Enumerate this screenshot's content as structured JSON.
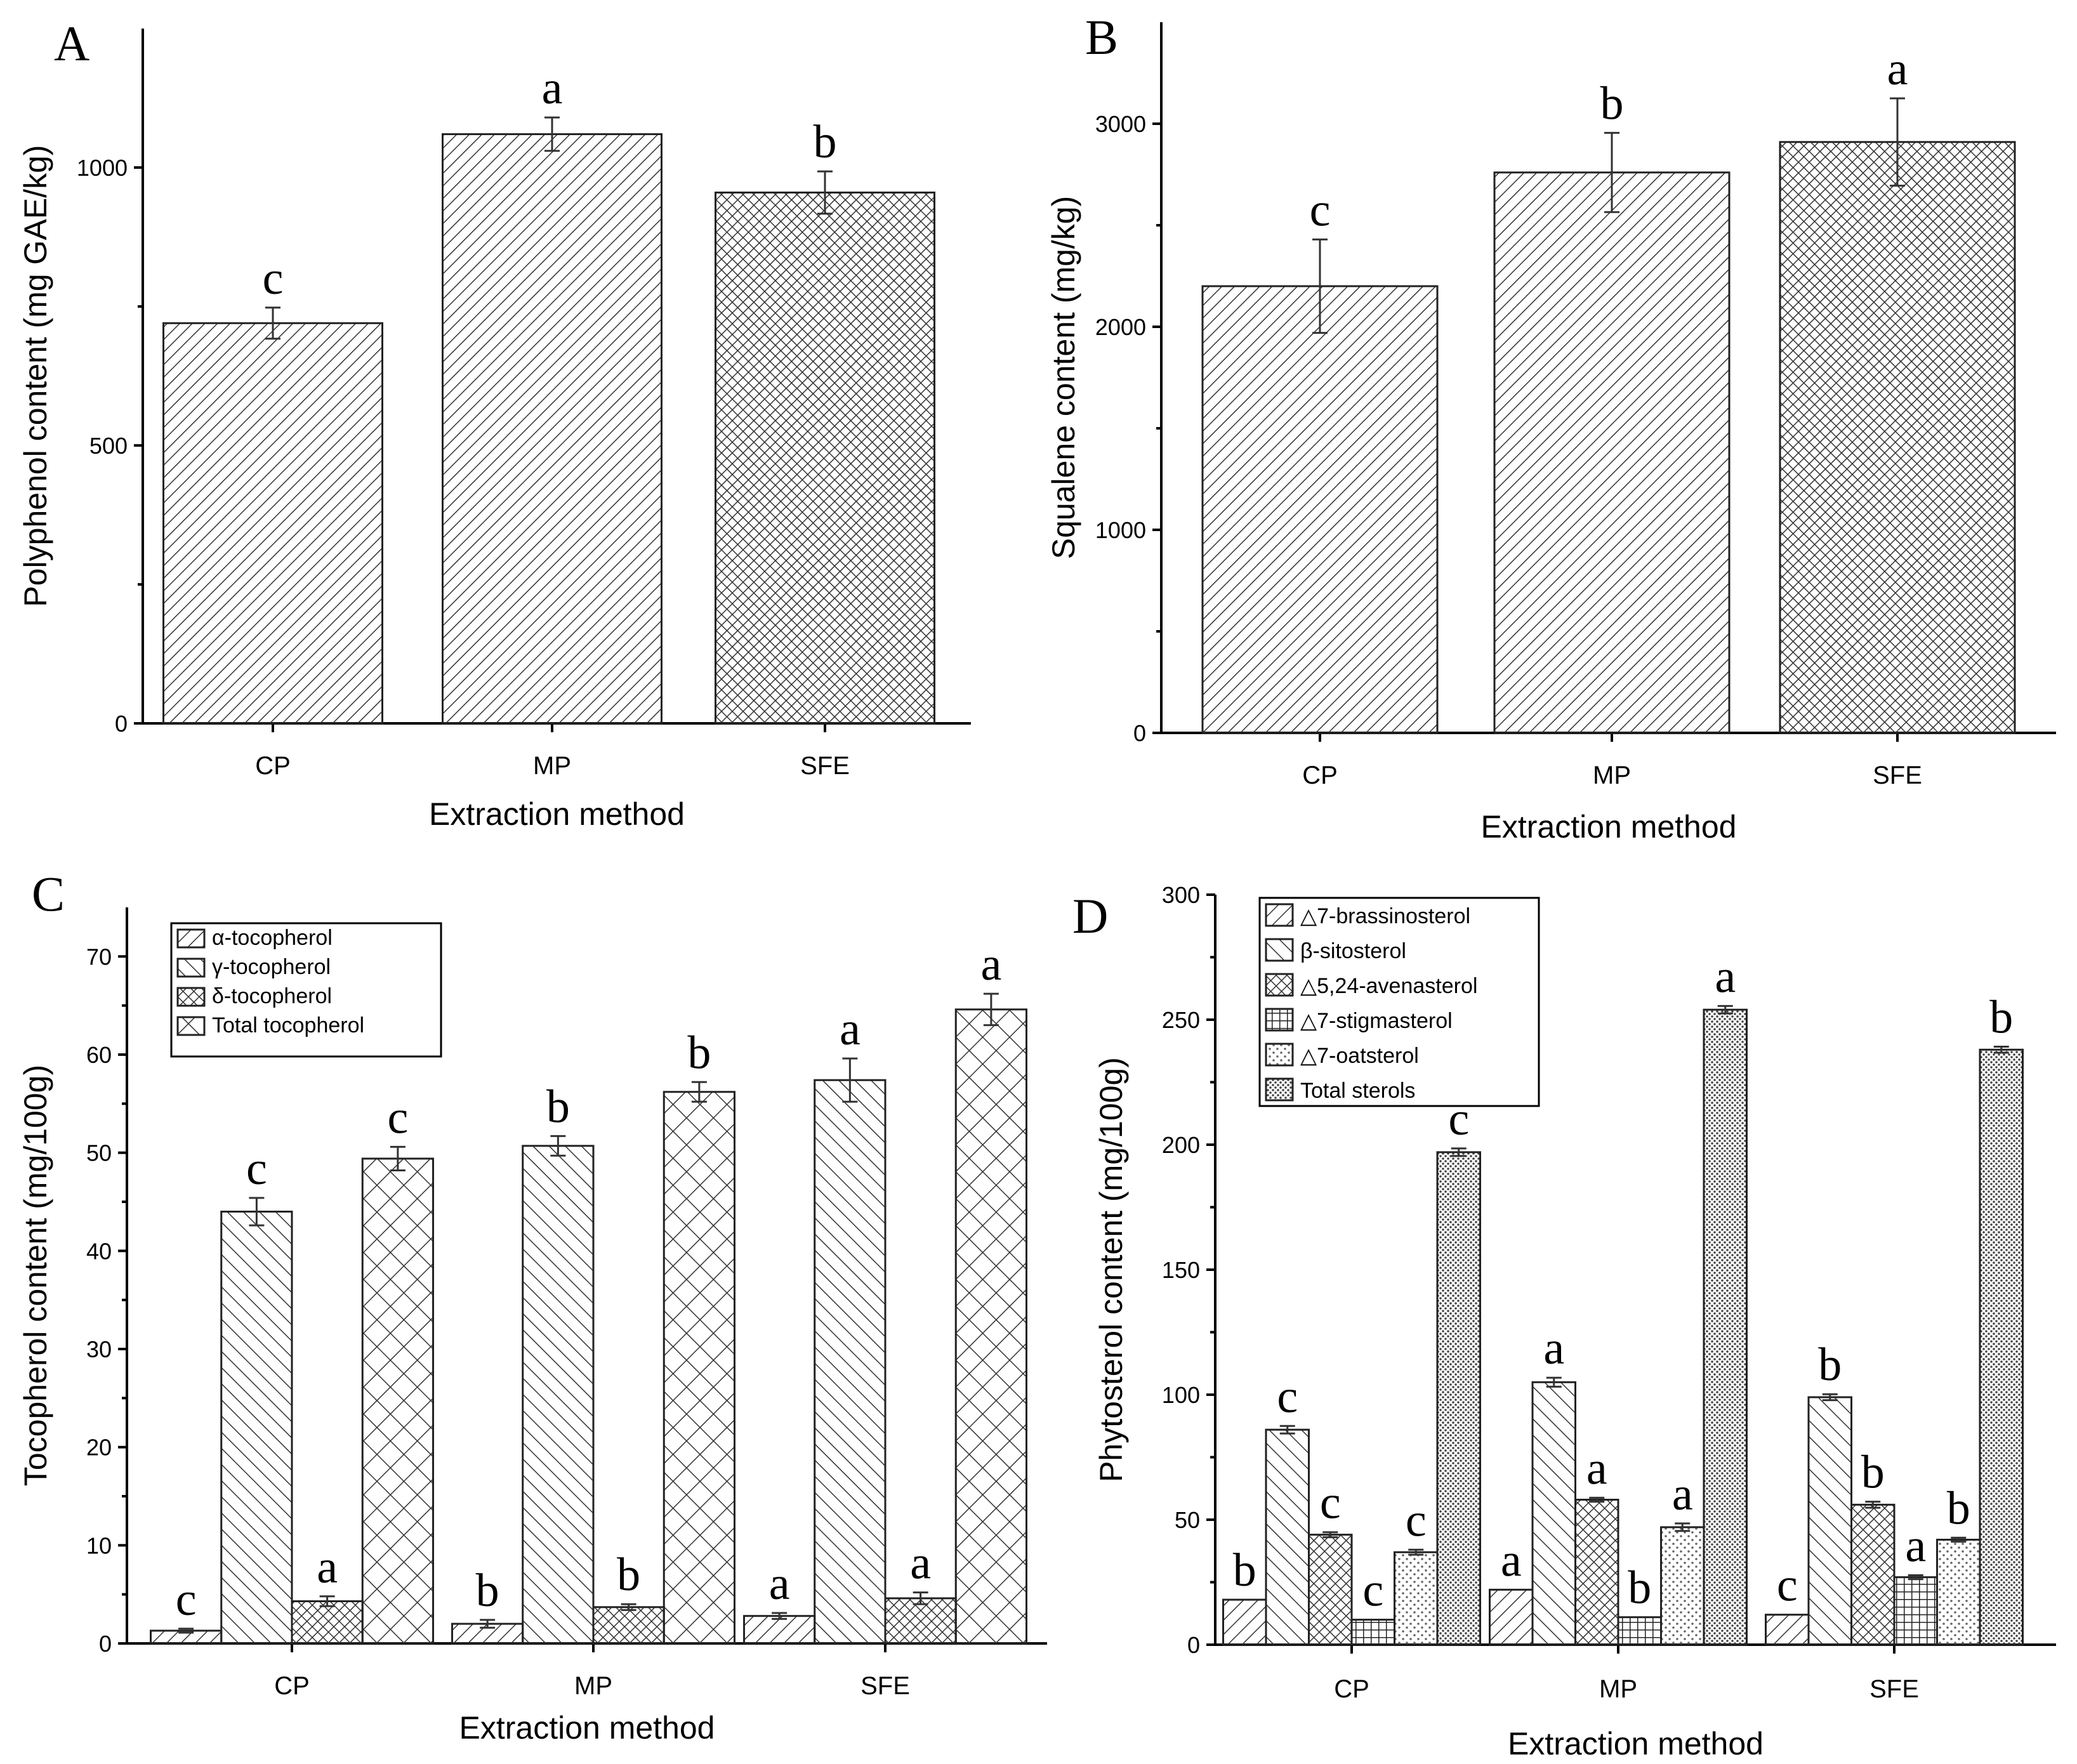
{
  "chart_data": [
    {
      "panel": "A",
      "type": "bar",
      "xlabel": "Extraction method",
      "ylabel": "Polyphenol content (mg GAE/kg)",
      "ylim": [
        0,
        1250
      ],
      "yticks": [
        0,
        500,
        1000
      ],
      "categories": [
        "CP",
        "MP",
        "SFE"
      ],
      "grid": false,
      "series": [
        {
          "values": [
            720,
            1060,
            955
          ],
          "errors": [
            28,
            30,
            38
          ],
          "letters": [
            "c",
            "a",
            "b"
          ],
          "pattern": [
            "diag-dense",
            "diag-dense",
            "cross-dense"
          ]
        }
      ]
    },
    {
      "panel": "B",
      "type": "bar",
      "xlabel": "Extraction method",
      "ylabel": "Squalene content (mg/kg)",
      "ylim": [
        0,
        3500
      ],
      "yticks": [
        0,
        1000,
        2000,
        3000
      ],
      "categories": [
        "CP",
        "MP",
        "SFE"
      ],
      "grid": false,
      "series": [
        {
          "values": [
            2200,
            2760,
            2910
          ],
          "errors": [
            230,
            195,
            215
          ],
          "letters": [
            "c",
            "b",
            "a"
          ],
          "pattern": [
            "diag-dense",
            "diag-dense",
            "cross-dense"
          ]
        }
      ]
    },
    {
      "panel": "C",
      "type": "bar",
      "xlabel": "Extraction method",
      "ylabel": "Tocopherol content (mg/100g)",
      "ylim": [
        0,
        75
      ],
      "yticks": [
        0,
        10,
        20,
        30,
        40,
        50,
        60,
        70
      ],
      "categories": [
        "CP",
        "MP",
        "SFE"
      ],
      "legend_position": "top-left",
      "grid": false,
      "series": [
        {
          "name": "α-tocopherol",
          "values": [
            1.3,
            2.0,
            2.8
          ],
          "errors": [
            0.2,
            0.4,
            0.3
          ],
          "letters": [
            "c",
            "b",
            "a"
          ],
          "pattern": "diag-fwd"
        },
        {
          "name": "γ-tocopherol",
          "values": [
            44.0,
            50.7,
            57.4
          ],
          "errors": [
            1.4,
            1.0,
            2.2
          ],
          "letters": [
            "c",
            "b",
            "a"
          ],
          "pattern": "diag-back"
        },
        {
          "name": "δ-tocopherol",
          "values": [
            4.3,
            3.7,
            4.6
          ],
          "errors": [
            0.5,
            0.3,
            0.6
          ],
          "letters": [
            "a",
            "b",
            "a"
          ],
          "pattern": "cross-fine"
        },
        {
          "name": "Total tocopherol",
          "values": [
            49.4,
            56.2,
            64.6
          ],
          "errors": [
            1.2,
            1.0,
            1.6
          ],
          "letters": [
            "c",
            "b",
            "a"
          ],
          "pattern": "cross-wide"
        }
      ]
    },
    {
      "panel": "D",
      "type": "bar",
      "xlabel": "Extraction method",
      "ylabel": "Phytosterol content (mg/100g)",
      "ylim": [
        0,
        300
      ],
      "yticks": [
        0,
        50,
        100,
        150,
        200,
        250,
        300
      ],
      "categories": [
        "CP",
        "MP",
        "SFE"
      ],
      "legend_position": "top-left",
      "grid": false,
      "series": [
        {
          "name": "△7-brassinosterol",
          "values": [
            18,
            22,
            12
          ],
          "errors": [
            0,
            0,
            0
          ],
          "letters": [
            "b",
            "a",
            "c"
          ],
          "pattern": "diag-fwd"
        },
        {
          "name": "β-sitosterol",
          "values": [
            86,
            105,
            99
          ],
          "errors": [
            1.5,
            1.8,
            1.2
          ],
          "letters": [
            "c",
            "a",
            "b"
          ],
          "pattern": "diag-back"
        },
        {
          "name": "△5,24-avenasterol",
          "values": [
            44,
            58,
            56
          ],
          "errors": [
            1.0,
            0.8,
            1.2
          ],
          "letters": [
            "c",
            "a",
            "b"
          ],
          "pattern": "cross-fine"
        },
        {
          "name": "△7-stigmasterol",
          "values": [
            10,
            11,
            27
          ],
          "errors": [
            0,
            0,
            0.8
          ],
          "letters": [
            "c",
            "b",
            "a"
          ],
          "pattern": "grid"
        },
        {
          "name": "△7-oatsterol",
          "values": [
            37,
            47,
            42
          ],
          "errors": [
            1.0,
            1.5,
            0.8
          ],
          "letters": [
            "c",
            "a",
            "b"
          ],
          "pattern": "dots"
        },
        {
          "name": "Total sterols",
          "values": [
            197,
            254,
            238
          ],
          "errors": [
            1.5,
            1.5,
            1.2
          ],
          "letters": [
            "c",
            "a",
            "b"
          ],
          "pattern": "dots-dense"
        }
      ]
    }
  ]
}
